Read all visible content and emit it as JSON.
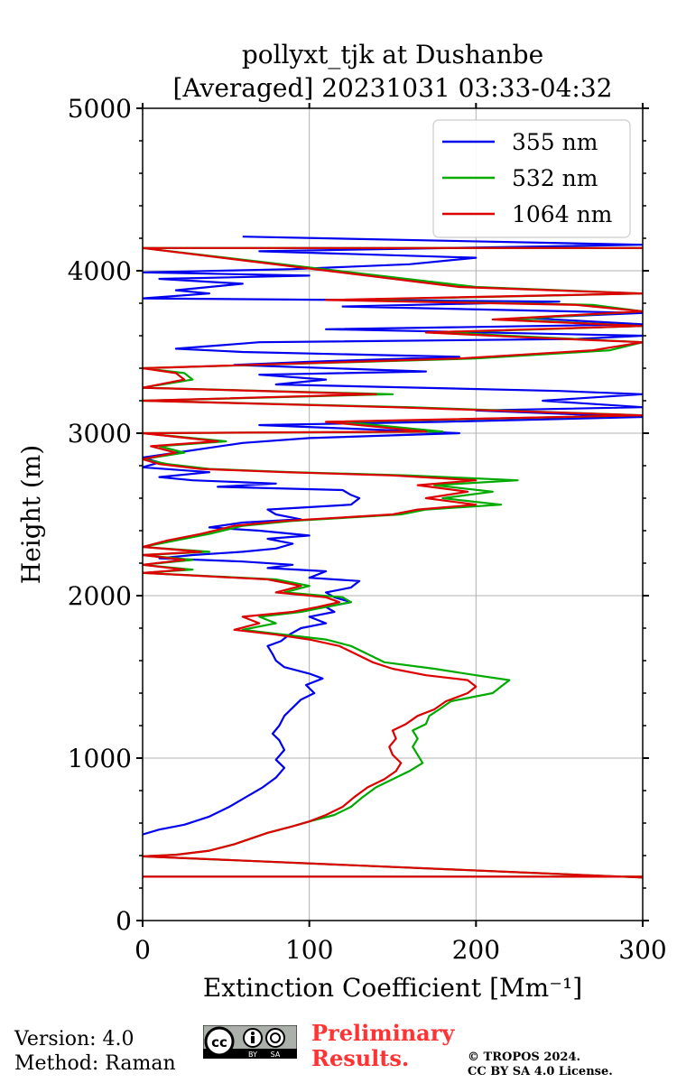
{
  "chart_data": {
    "type": "line",
    "title_line1": "pollyxt_tjk at Dushanbe",
    "title_line2": "[Averaged] 20231031 03:33-04:32",
    "xlabel": "Extinction Coefficient [Mm⁻¹]",
    "ylabel": "Height (m)",
    "xlim": [
      0,
      300
    ],
    "ylim": [
      0,
      5000
    ],
    "xticks": [
      "0",
      "100",
      "200",
      "300"
    ],
    "yticks": [
      "0",
      "1000",
      "2000",
      "3000",
      "4000",
      "5000"
    ],
    "xtick_values": [
      0,
      100,
      200,
      300
    ],
    "ytick_values": [
      0,
      1000,
      2000,
      3000,
      4000,
      5000
    ],
    "grid": true,
    "legend_position": "top-right",
    "series": [
      {
        "name": "355 nm",
        "color": "#0000ee",
        "points": [
          [
            0,
            530
          ],
          [
            10,
            560
          ],
          [
            25,
            590
          ],
          [
            40,
            640
          ],
          [
            52,
            700
          ],
          [
            62,
            760
          ],
          [
            72,
            820
          ],
          [
            80,
            880
          ],
          [
            85,
            940
          ],
          [
            80,
            990
          ],
          [
            85,
            1050
          ],
          [
            82,
            1110
          ],
          [
            78,
            1150
          ],
          [
            82,
            1200
          ],
          [
            85,
            1260
          ],
          [
            90,
            1310
          ],
          [
            95,
            1360
          ],
          [
            103,
            1400
          ],
          [
            98,
            1450
          ],
          [
            108,
            1490
          ],
          [
            100,
            1520
          ],
          [
            85,
            1560
          ],
          [
            80,
            1600
          ],
          [
            78,
            1640
          ],
          [
            75,
            1690
          ],
          [
            83,
            1720
          ],
          [
            88,
            1760
          ],
          [
            95,
            1800
          ],
          [
            110,
            1830
          ],
          [
            100,
            1870
          ],
          [
            115,
            1900
          ],
          [
            110,
            1930
          ],
          [
            125,
            1960
          ],
          [
            115,
            1990
          ],
          [
            110,
            2020
          ],
          [
            125,
            2050
          ],
          [
            130,
            2090
          ],
          [
            100,
            2110
          ],
          [
            110,
            2150
          ],
          [
            75,
            2170
          ],
          [
            90,
            2190
          ],
          [
            60,
            2210
          ],
          [
            10,
            2230
          ],
          [
            30,
            2250
          ],
          [
            60,
            2270
          ],
          [
            80,
            2290
          ],
          [
            90,
            2320
          ],
          [
            75,
            2350
          ],
          [
            100,
            2370
          ],
          [
            70,
            2400
          ],
          [
            40,
            2420
          ],
          [
            60,
            2450
          ],
          [
            95,
            2470
          ],
          [
            80,
            2500
          ],
          [
            75,
            2530
          ],
          [
            125,
            2560
          ],
          [
            130,
            2600
          ],
          [
            125,
            2620
          ],
          [
            120,
            2650
          ],
          [
            45,
            2670
          ],
          [
            80,
            2690
          ],
          [
            30,
            2710
          ],
          [
            10,
            2730
          ],
          [
            40,
            2760
          ],
          [
            0,
            2790
          ],
          [
            10,
            2820
          ],
          [
            0,
            2850
          ],
          [
            20,
            2880
          ],
          [
            40,
            2910
          ],
          [
            60,
            2940
          ],
          [
            100,
            2970
          ],
          [
            190,
            3000
          ],
          [
            120,
            3030
          ],
          [
            70,
            3050
          ],
          [
            180,
            3070
          ],
          [
            300,
            3100
          ],
          [
            200,
            3140
          ],
          [
            300,
            3160
          ],
          [
            240,
            3200
          ],
          [
            300,
            3240
          ],
          [
            250,
            3260
          ],
          [
            80,
            3300
          ],
          [
            110,
            3330
          ],
          [
            70,
            3360
          ],
          [
            170,
            3380
          ],
          [
            55,
            3420
          ],
          [
            100,
            3440
          ],
          [
            190,
            3470
          ],
          [
            60,
            3500
          ],
          [
            20,
            3520
          ],
          [
            70,
            3560
          ],
          [
            260,
            3580
          ],
          [
            300,
            3600
          ],
          [
            110,
            3640
          ],
          [
            300,
            3670
          ],
          [
            230,
            3710
          ],
          [
            300,
            3740
          ],
          [
            120,
            3780
          ],
          [
            250,
            3810
          ],
          [
            0,
            3830
          ],
          [
            40,
            3860
          ],
          [
            20,
            3880
          ],
          [
            60,
            3920
          ],
          [
            10,
            3950
          ],
          [
            100,
            3970
          ],
          [
            0,
            3990
          ],
          [
            90,
            4010
          ],
          [
            160,
            4040
          ],
          [
            200,
            4080
          ],
          [
            70,
            4120
          ],
          [
            300,
            4160
          ],
          [
            60,
            4210
          ]
        ]
      },
      {
        "name": "532 nm",
        "color": "#00aa00",
        "points": [
          [
            0,
            270
          ],
          [
            300,
            270
          ],
          [
            300,
            265
          ],
          [
            0,
            395
          ],
          [
            20,
            405
          ],
          [
            40,
            430
          ],
          [
            55,
            470
          ],
          [
            75,
            540
          ],
          [
            90,
            580
          ],
          [
            100,
            610
          ],
          [
            115,
            650
          ],
          [
            125,
            700
          ],
          [
            132,
            760
          ],
          [
            140,
            820
          ],
          [
            150,
            870
          ],
          [
            160,
            920
          ],
          [
            168,
            970
          ],
          [
            165,
            1020
          ],
          [
            162,
            1070
          ],
          [
            165,
            1120
          ],
          [
            162,
            1170
          ],
          [
            170,
            1210
          ],
          [
            172,
            1260
          ],
          [
            178,
            1300
          ],
          [
            185,
            1350
          ],
          [
            210,
            1400
          ],
          [
            215,
            1440
          ],
          [
            220,
            1480
          ],
          [
            200,
            1510
          ],
          [
            175,
            1550
          ],
          [
            145,
            1590
          ],
          [
            135,
            1640
          ],
          [
            125,
            1690
          ],
          [
            110,
            1730
          ],
          [
            85,
            1760
          ],
          [
            60,
            1790
          ],
          [
            80,
            1830
          ],
          [
            70,
            1870
          ],
          [
            95,
            1900
          ],
          [
            110,
            1930
          ],
          [
            125,
            1960
          ],
          [
            120,
            1990
          ],
          [
            85,
            2020
          ],
          [
            100,
            2060
          ],
          [
            80,
            2100
          ],
          [
            0,
            2140
          ],
          [
            30,
            2160
          ],
          [
            0,
            2190
          ],
          [
            30,
            2220
          ],
          [
            0,
            2250
          ],
          [
            40,
            2270
          ],
          [
            0,
            2300
          ],
          [
            20,
            2340
          ],
          [
            40,
            2380
          ],
          [
            60,
            2430
          ],
          [
            90,
            2460
          ],
          [
            155,
            2500
          ],
          [
            170,
            2530
          ],
          [
            215,
            2560
          ],
          [
            180,
            2600
          ],
          [
            210,
            2640
          ],
          [
            175,
            2680
          ],
          [
            225,
            2710
          ],
          [
            160,
            2740
          ],
          [
            90,
            2760
          ],
          [
            40,
            2780
          ],
          [
            15,
            2810
          ],
          [
            0,
            2840
          ],
          [
            25,
            2880
          ],
          [
            10,
            2920
          ],
          [
            50,
            2950
          ],
          [
            0,
            3000
          ],
          [
            180,
            3010
          ],
          [
            150,
            3040
          ],
          [
            120,
            3070
          ],
          [
            300,
            3110
          ],
          [
            160,
            3160
          ],
          [
            0,
            3200
          ],
          [
            150,
            3240
          ],
          [
            0,
            3280
          ],
          [
            30,
            3330
          ],
          [
            25,
            3370
          ],
          [
            0,
            3400
          ],
          [
            200,
            3460
          ],
          [
            280,
            3510
          ],
          [
            300,
            3560
          ],
          [
            240,
            3590
          ],
          [
            180,
            3620
          ],
          [
            300,
            3660
          ],
          [
            220,
            3700
          ],
          [
            300,
            3750
          ],
          [
            270,
            3790
          ],
          [
            120,
            3820
          ],
          [
            300,
            3860
          ],
          [
            200,
            3900
          ],
          [
            0,
            4140
          ],
          [
            300,
            4140
          ]
        ]
      },
      {
        "name": "1064 nm",
        "color": "#dd0000",
        "points": [
          [
            0,
            270
          ],
          [
            300,
            270
          ],
          [
            300,
            265
          ],
          [
            0,
            395
          ],
          [
            20,
            405
          ],
          [
            40,
            430
          ],
          [
            55,
            470
          ],
          [
            75,
            540
          ],
          [
            90,
            580
          ],
          [
            100,
            610
          ],
          [
            110,
            650
          ],
          [
            120,
            700
          ],
          [
            127,
            760
          ],
          [
            135,
            820
          ],
          [
            145,
            870
          ],
          [
            152,
            920
          ],
          [
            155,
            970
          ],
          [
            150,
            1020
          ],
          [
            148,
            1070
          ],
          [
            152,
            1120
          ],
          [
            150,
            1170
          ],
          [
            158,
            1210
          ],
          [
            165,
            1260
          ],
          [
            175,
            1300
          ],
          [
            182,
            1350
          ],
          [
            195,
            1400
          ],
          [
            200,
            1440
          ],
          [
            195,
            1480
          ],
          [
            170,
            1510
          ],
          [
            150,
            1550
          ],
          [
            138,
            1590
          ],
          [
            128,
            1640
          ],
          [
            118,
            1690
          ],
          [
            100,
            1730
          ],
          [
            80,
            1760
          ],
          [
            55,
            1790
          ],
          [
            70,
            1830
          ],
          [
            60,
            1870
          ],
          [
            90,
            1900
          ],
          [
            105,
            1930
          ],
          [
            118,
            1960
          ],
          [
            110,
            1990
          ],
          [
            80,
            2020
          ],
          [
            95,
            2060
          ],
          [
            75,
            2100
          ],
          [
            0,
            2140
          ],
          [
            25,
            2160
          ],
          [
            0,
            2190
          ],
          [
            25,
            2220
          ],
          [
            0,
            2250
          ],
          [
            35,
            2270
          ],
          [
            0,
            2300
          ],
          [
            15,
            2340
          ],
          [
            35,
            2380
          ],
          [
            55,
            2430
          ],
          [
            85,
            2460
          ],
          [
            150,
            2500
          ],
          [
            165,
            2530
          ],
          [
            200,
            2560
          ],
          [
            170,
            2600
          ],
          [
            195,
            2640
          ],
          [
            165,
            2680
          ],
          [
            200,
            2710
          ],
          [
            150,
            2740
          ],
          [
            85,
            2760
          ],
          [
            35,
            2780
          ],
          [
            10,
            2810
          ],
          [
            0,
            2840
          ],
          [
            20,
            2880
          ],
          [
            5,
            2920
          ],
          [
            45,
            2950
          ],
          [
            0,
            3000
          ],
          [
            170,
            3010
          ],
          [
            140,
            3040
          ],
          [
            110,
            3070
          ],
          [
            300,
            3110
          ],
          [
            150,
            3160
          ],
          [
            0,
            3200
          ],
          [
            140,
            3240
          ],
          [
            0,
            3280
          ],
          [
            25,
            3330
          ],
          [
            20,
            3370
          ],
          [
            0,
            3400
          ],
          [
            190,
            3460
          ],
          [
            270,
            3510
          ],
          [
            300,
            3560
          ],
          [
            230,
            3590
          ],
          [
            170,
            3620
          ],
          [
            300,
            3660
          ],
          [
            210,
            3700
          ],
          [
            300,
            3750
          ],
          [
            260,
            3790
          ],
          [
            110,
            3820
          ],
          [
            300,
            3860
          ],
          [
            190,
            3900
          ],
          [
            0,
            4140
          ],
          [
            300,
            4140
          ]
        ]
      }
    ]
  },
  "footer": {
    "version": "Version: 4.0",
    "method": "Method: Raman",
    "preliminary_line1": "Preliminary",
    "preliminary_line2": "Results.",
    "copyright_line1": "© TROPOS 2024.",
    "copyright_line2": "CC BY SA 4.0 License.",
    "license_badge": "cc-by-sa-icon",
    "badge_by": "BY",
    "badge_sa": "SA"
  }
}
